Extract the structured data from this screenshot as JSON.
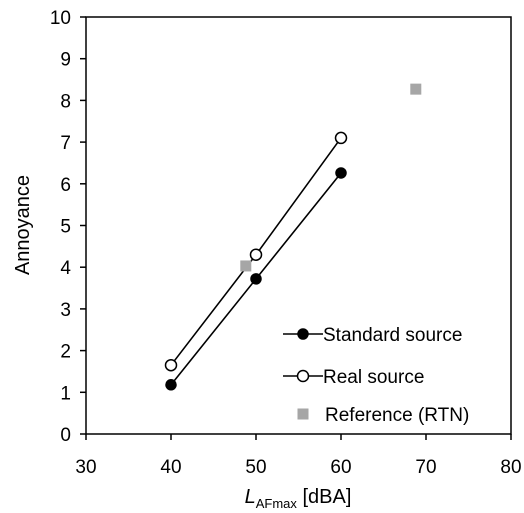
{
  "chart_data": {
    "type": "scatter",
    "xlabel": {
      "main": "L",
      "subscript": "AFmax",
      "suffix": " [dBA]"
    },
    "ylabel": "Annoyance",
    "xlim": [
      30,
      80
    ],
    "ylim": [
      0,
      10
    ],
    "xticks": [
      30,
      40,
      50,
      60,
      70,
      80
    ],
    "yticks": [
      0,
      1,
      2,
      3,
      4,
      5,
      6,
      7,
      8,
      9,
      10
    ],
    "grid": false,
    "legend_position": "bottom-right",
    "series": [
      {
        "name": "Standard source",
        "marker": "filled-circle",
        "line": true,
        "color": "#000000",
        "x": [
          40,
          50,
          60
        ],
        "y": [
          1.18,
          3.72,
          6.26
        ]
      },
      {
        "name": "Real source",
        "marker": "open-circle",
        "line": true,
        "color": "#000000",
        "x": [
          40,
          50,
          60
        ],
        "y": [
          1.65,
          4.3,
          7.1
        ]
      },
      {
        "name": "Reference (RTN)",
        "marker": "square",
        "line": false,
        "color": "#a6a6a6",
        "x": [
          48.8,
          68.8
        ],
        "y": [
          4.03,
          8.27
        ]
      }
    ]
  }
}
